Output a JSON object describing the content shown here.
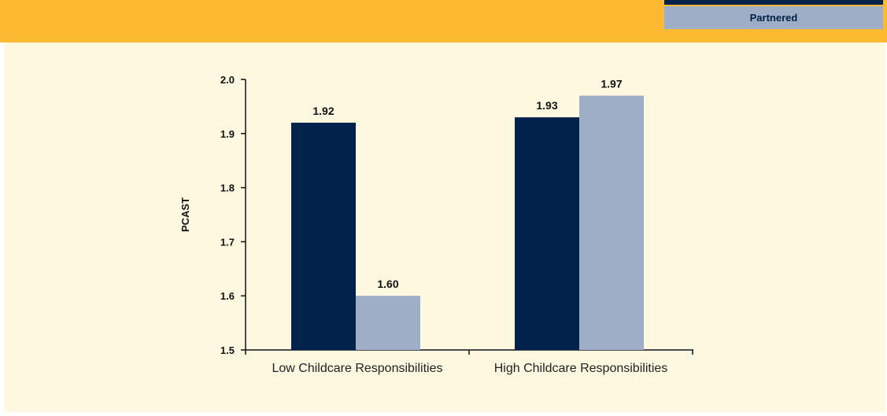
{
  "chart_data": {
    "type": "bar",
    "title": "",
    "xlabel": "",
    "ylabel": "PCAST",
    "ylim": [
      1.5,
      2.0
    ],
    "yticks": [
      1.5,
      1.6,
      1.7,
      1.8,
      1.9,
      2.0
    ],
    "categories": [
      "Low Childcare Responsibilities",
      "High Childcare Responsibilities"
    ],
    "series": [
      {
        "name": "",
        "values": [
          1.92,
          1.93
        ],
        "color": "#00224b"
      },
      {
        "name": "Partnered",
        "values": [
          1.6,
          1.97
        ],
        "color": "#9eaec6"
      }
    ],
    "data_labels": [
      [
        "1.92",
        "1.93"
      ],
      [
        "1.60",
        "1.97"
      ]
    ],
    "legend_position": "top-right",
    "grid": false
  },
  "colors": {
    "banner": "#fdb931",
    "panel": "#fff8e0",
    "axis": "#111111"
  }
}
